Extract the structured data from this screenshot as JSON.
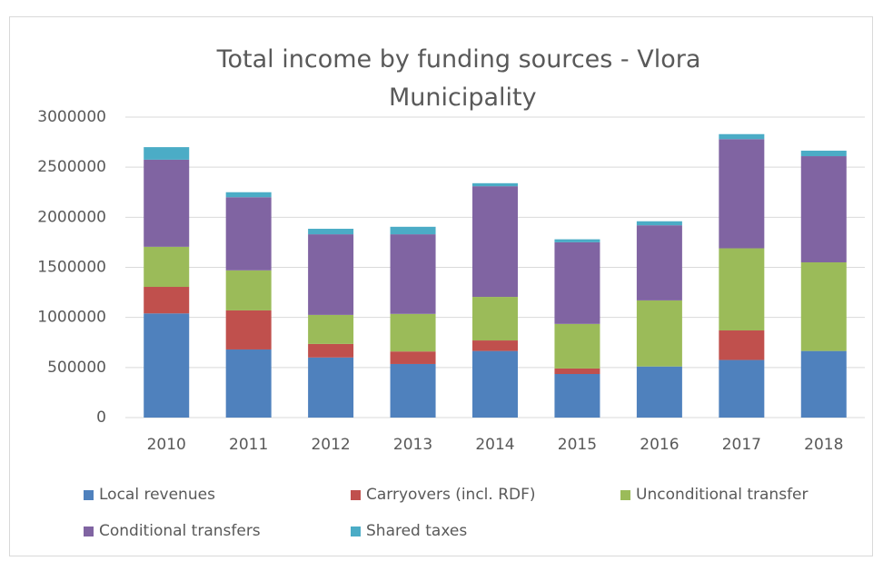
{
  "chart_data": {
    "type": "stacked_bar",
    "title": "Total income by funding sources - Vlora Municipality",
    "categories": [
      "2010",
      "2011",
      "2012",
      "2013",
      "2014",
      "2015",
      "2016",
      "2017",
      "2018"
    ],
    "series": [
      {
        "name": "Local revenues",
        "color": "#4f81bd",
        "values": [
          1040000,
          680000,
          600000,
          535000,
          665000,
          435000,
          510000,
          575000,
          665000
        ]
      },
      {
        "name": "Carryovers (incl. RDF)",
        "color": "#c0504d",
        "values": [
          265000,
          390000,
          135000,
          125000,
          105000,
          55000,
          0,
          295000,
          0
        ]
      },
      {
        "name": "Unconditional transfer",
        "color": "#9bbb59",
        "values": [
          400000,
          400000,
          290000,
          375000,
          435000,
          445000,
          660000,
          820000,
          885000
        ]
      },
      {
        "name": "Conditional transfers",
        "color": "#8064a2",
        "values": [
          870000,
          730000,
          805000,
          795000,
          1105000,
          815000,
          750000,
          1090000,
          1060000
        ]
      },
      {
        "name": "Shared taxes",
        "color": "#4bacc6",
        "values": [
          125000,
          50000,
          55000,
          75000,
          30000,
          30000,
          40000,
          50000,
          55000
        ]
      }
    ],
    "ylim": [
      0,
      3000000
    ],
    "yticks": [
      0,
      500000,
      1000000,
      1500000,
      2000000,
      2500000,
      3000000
    ],
    "grid": true
  }
}
